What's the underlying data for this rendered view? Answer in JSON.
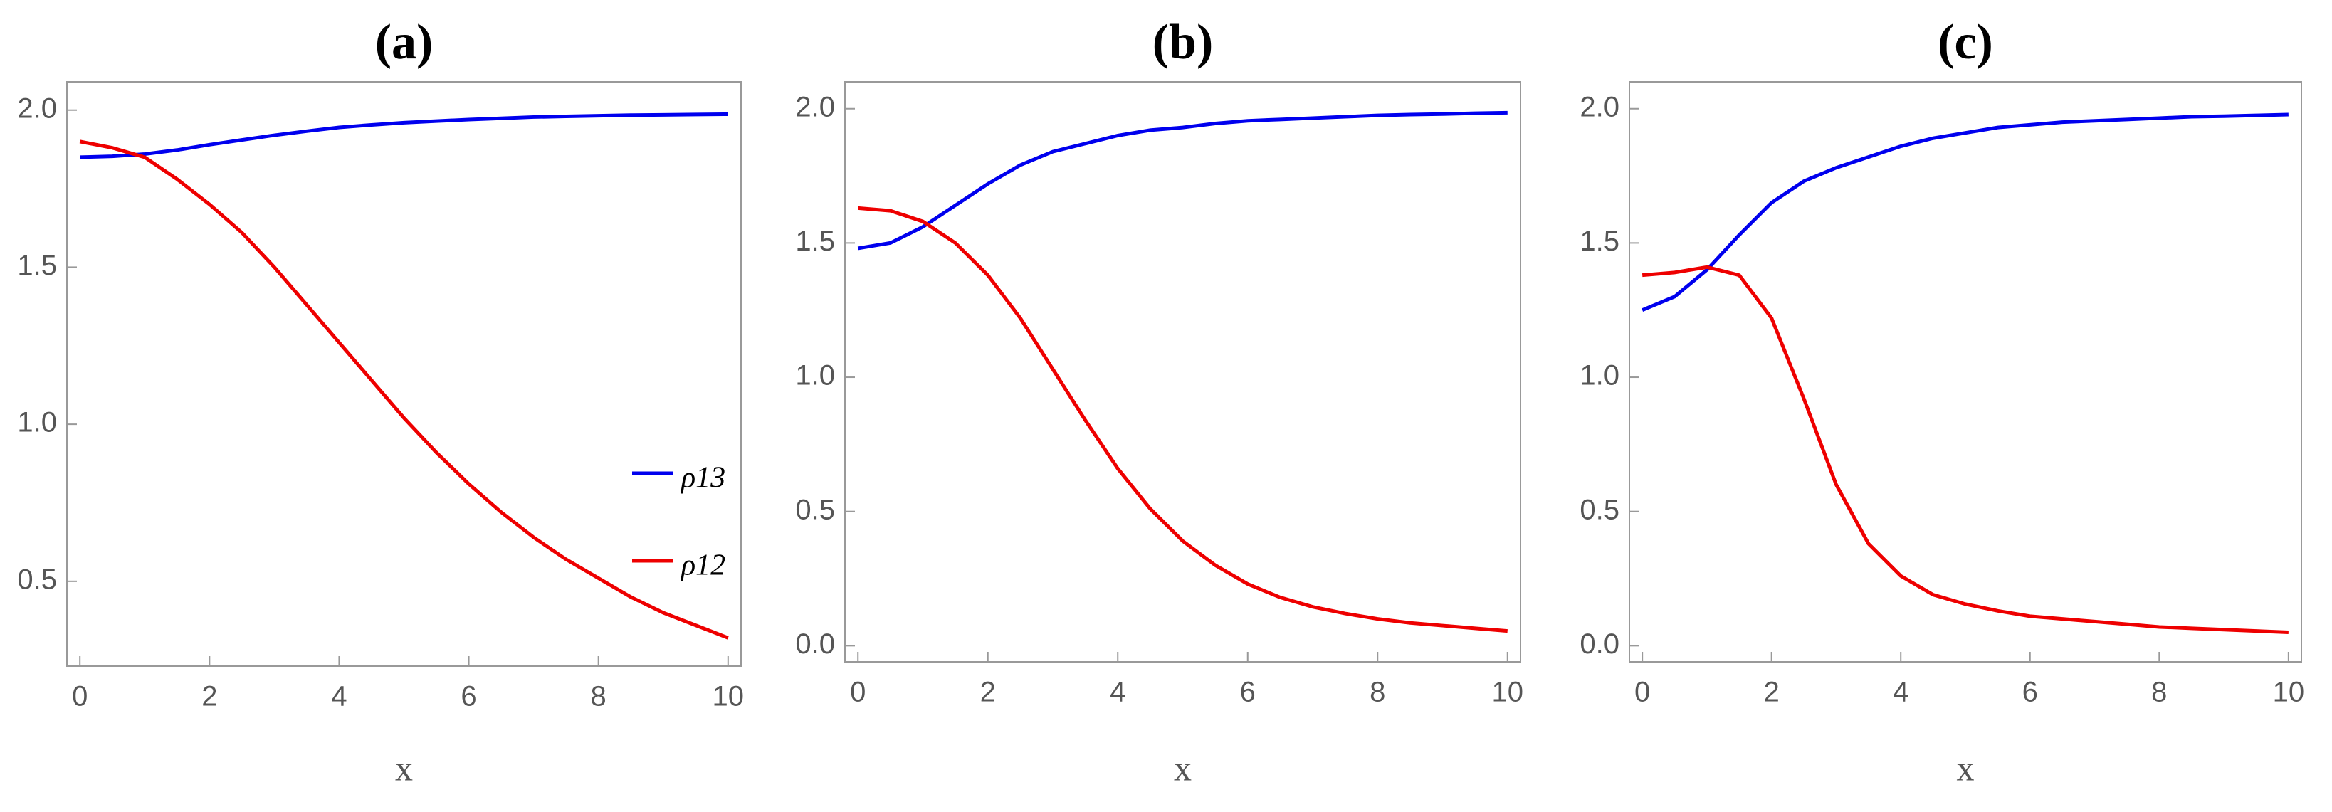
{
  "chart_data": [
    {
      "type": "line",
      "title": "(a)",
      "xlabel": "x",
      "x": [
        0,
        0.5,
        1,
        1.5,
        2,
        2.5,
        3,
        3.5,
        4,
        4.5,
        5,
        5.5,
        6,
        6.5,
        7,
        7.5,
        8,
        8.5,
        9,
        9.5,
        10
      ],
      "xlim": [
        -0.2,
        10.2
      ],
      "ylim": [
        0.23,
        2.09
      ],
      "xticks": [
        0,
        2,
        4,
        6,
        8,
        10
      ],
      "yticks": [
        0.5,
        {
          "value": 1.0,
          "label": "1.0"
        },
        1.5,
        {
          "value": 2.0,
          "label": "2.0"
        }
      ],
      "legend": "right",
      "series": [
        {
          "name": "ρ13",
          "color": "#0000ee",
          "values": [
            1.85,
            1.853,
            1.86,
            1.873,
            1.89,
            1.905,
            1.92,
            1.933,
            1.945,
            1.953,
            1.96,
            1.965,
            1.97,
            1.974,
            1.978,
            1.98,
            1.982,
            1.984,
            1.985,
            1.986,
            1.987
          ]
        },
        {
          "name": "ρ12",
          "color": "#ee0000",
          "values": [
            1.9,
            1.88,
            1.85,
            1.78,
            1.7,
            1.61,
            1.5,
            1.38,
            1.26,
            1.14,
            1.02,
            0.91,
            0.81,
            0.72,
            0.64,
            0.57,
            0.51,
            0.45,
            0.4,
            0.36,
            0.32
          ]
        }
      ]
    },
    {
      "type": "line",
      "title": "(b)",
      "xlabel": "x",
      "x": [
        0,
        0.5,
        1,
        1.5,
        2,
        2.5,
        3,
        3.5,
        4,
        4.5,
        5,
        5.5,
        6,
        6.5,
        7,
        7.5,
        8,
        8.5,
        9,
        9.5,
        10
      ],
      "xlim": [
        -0.2,
        10.2
      ],
      "ylim": [
        -0.06,
        2.1
      ],
      "xticks": [
        0,
        2,
        4,
        6,
        8,
        10
      ],
      "yticks": [
        {
          "value": 0,
          "label": "0.0"
        },
        0.5,
        {
          "value": 1.0,
          "label": "1.0"
        },
        1.5,
        {
          "value": 2.0,
          "label": "2.0"
        }
      ],
      "series": [
        {
          "color": "#0000ee",
          "values": [
            1.48,
            1.5,
            1.56,
            1.64,
            1.72,
            1.79,
            1.84,
            1.87,
            1.9,
            1.92,
            1.93,
            1.945,
            1.955,
            1.96,
            1.965,
            1.97,
            1.975,
            1.978,
            1.98,
            1.983,
            1.985
          ]
        },
        {
          "color": "#ee0000",
          "values": [
            1.63,
            1.62,
            1.58,
            1.5,
            1.38,
            1.22,
            1.03,
            0.84,
            0.66,
            0.51,
            0.39,
            0.3,
            0.23,
            0.18,
            0.145,
            0.12,
            0.1,
            0.085,
            0.075,
            0.065,
            0.055
          ]
        }
      ]
    },
    {
      "type": "line",
      "title": "(c)",
      "xlabel": "x",
      "x": [
        0,
        0.5,
        1,
        1.5,
        2,
        2.5,
        3,
        3.5,
        4,
        4.5,
        5,
        5.5,
        6,
        6.5,
        7,
        7.5,
        8,
        8.5,
        9,
        9.5,
        10
      ],
      "xlim": [
        -0.2,
        10.2
      ],
      "ylim": [
        -0.06,
        2.1
      ],
      "xticks": [
        0,
        2,
        4,
        6,
        8,
        10
      ],
      "yticks": [
        {
          "value": 0,
          "label": "0.0"
        },
        0.5,
        {
          "value": 1.0,
          "label": "1.0"
        },
        1.5,
        {
          "value": 2.0,
          "label": "2.0"
        }
      ],
      "series": [
        {
          "color": "#0000ee",
          "values": [
            1.25,
            1.3,
            1.4,
            1.53,
            1.65,
            1.73,
            1.78,
            1.82,
            1.86,
            1.89,
            1.91,
            1.93,
            1.94,
            1.95,
            1.955,
            1.96,
            1.965,
            1.97,
            1.972,
            1.975,
            1.978
          ]
        },
        {
          "color": "#ee0000",
          "values": [
            1.38,
            1.39,
            1.41,
            1.38,
            1.22,
            0.92,
            0.6,
            0.38,
            0.26,
            0.19,
            0.155,
            0.13,
            0.11,
            0.1,
            0.09,
            0.08,
            0.07,
            0.065,
            0.06,
            0.055,
            0.05
          ]
        }
      ]
    }
  ]
}
